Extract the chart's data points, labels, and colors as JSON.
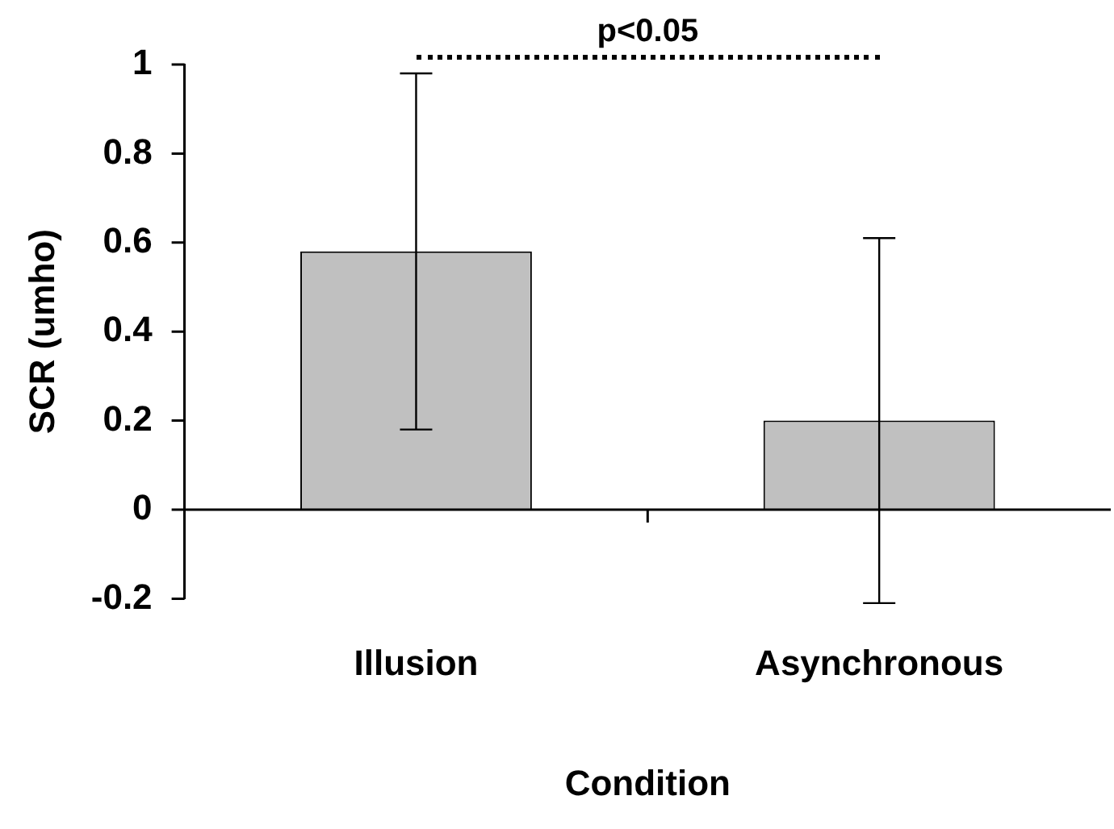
{
  "chart_data": {
    "type": "bar",
    "xlabel": "Condition",
    "ylabel": "SCR (umho)",
    "categories": [
      "Illusion",
      "Asynchronous"
    ],
    "values": [
      0.58,
      0.2
    ],
    "errors": [
      0.4,
      0.41
    ],
    "color": "#c0c0c0",
    "ylim": [
      -0.2,
      1
    ],
    "yticks": [
      -0.2,
      0,
      0.2,
      0.4,
      0.6,
      0.8,
      1
    ],
    "legend": false,
    "annotations": [
      "p<0.05"
    ]
  }
}
